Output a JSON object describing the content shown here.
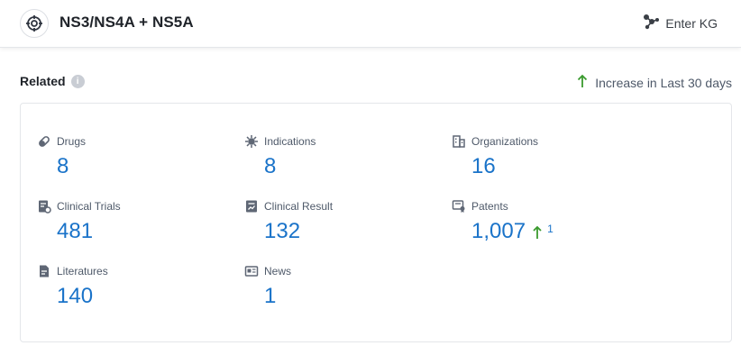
{
  "header": {
    "title": "NS3/NS4A + NS5A",
    "enter_kg_label": "Enter KG"
  },
  "related": {
    "label": "Related",
    "increase_legend": "Increase in Last 30 days"
  },
  "stats": {
    "drugs": {
      "label": "Drugs",
      "value": "8"
    },
    "indications": {
      "label": "Indications",
      "value": "8"
    },
    "organizations": {
      "label": "Organizations",
      "value": "16"
    },
    "clinical_trials": {
      "label": "Clinical Trials",
      "value": "481"
    },
    "clinical_result": {
      "label": "Clinical Result",
      "value": "132"
    },
    "patents": {
      "label": "Patents",
      "value": "1,007",
      "increase": "1"
    },
    "literatures": {
      "label": "Literatures",
      "value": "140"
    },
    "news": {
      "label": "News",
      "value": "1"
    }
  },
  "colors": {
    "value_blue": "#1a73c9",
    "increase_green": "#3a9a2e",
    "icon_gray": "#5f6775"
  }
}
